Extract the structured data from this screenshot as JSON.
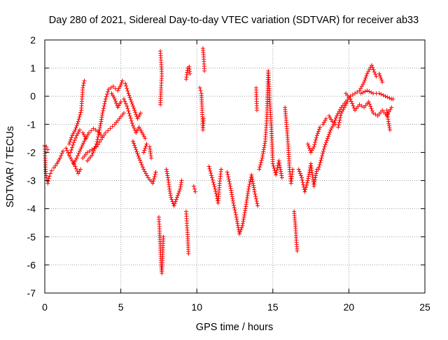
{
  "chart_data": {
    "type": "scatter",
    "title": "Day 280 of 2021, Sidereal Day-to-day VTEC variation (SDTVAR) for receiver ab33",
    "xlabel": "GPS time / hours",
    "ylabel": "SDTVAR / TECUs",
    "xlim": [
      0,
      25
    ],
    "ylim": [
      -7,
      2
    ],
    "x_ticks": [
      0,
      5,
      10,
      15,
      20,
      25
    ],
    "y_ticks": [
      -7,
      -6,
      -5,
      -4,
      -3,
      -2,
      -1,
      0,
      1,
      2
    ],
    "grid": true,
    "marker": "+",
    "color": "#ff0000",
    "series": [
      {
        "name": "SDTVAR",
        "segments": [
          [
            [
              0.0,
              -1.8
            ],
            [
              0.05,
              -2.6
            ],
            [
              0.1,
              -2.9
            ],
            [
              0.2,
              -3.1
            ],
            [
              0.3,
              -2.85
            ],
            [
              0.45,
              -2.65
            ],
            [
              0.6,
              -2.55
            ],
            [
              0.8,
              -2.4
            ],
            [
              1.0,
              -2.2
            ],
            [
              1.2,
              -1.95
            ],
            [
              1.4,
              -1.85
            ],
            [
              1.6,
              -2.1
            ],
            [
              1.8,
              -2.3
            ],
            [
              2.0,
              -2.5
            ],
            [
              2.2,
              -2.75
            ],
            [
              2.35,
              -2.6
            ]
          ],
          [
            [
              0.0,
              -1.75
            ],
            [
              0.1,
              -1.8
            ],
            [
              0.2,
              -1.9
            ]
          ],
          [
            [
              1.6,
              -1.7
            ],
            [
              1.8,
              -1.4
            ],
            [
              2.0,
              -1.2
            ],
            [
              2.2,
              -0.9
            ],
            [
              2.4,
              -0.5
            ],
            [
              2.5,
              0.3
            ],
            [
              2.6,
              0.55
            ]
          ],
          [
            [
              1.7,
              -2.0
            ],
            [
              1.9,
              -1.65
            ],
            [
              2.1,
              -1.4
            ],
            [
              2.3,
              -1.2
            ],
            [
              2.5,
              -1.3
            ],
            [
              2.7,
              -1.5
            ]
          ],
          [
            [
              1.9,
              -2.4
            ],
            [
              2.1,
              -2.2
            ],
            [
              2.3,
              -1.95
            ],
            [
              2.6,
              -1.6
            ],
            [
              2.9,
              -1.3
            ],
            [
              3.2,
              -1.15
            ],
            [
              3.5,
              -1.25
            ],
            [
              3.8,
              -1.45
            ]
          ],
          [
            [
              2.5,
              -2.2
            ],
            [
              2.8,
              -2.0
            ],
            [
              3.1,
              -1.9
            ],
            [
              3.4,
              -1.8
            ],
            [
              3.7,
              -1.55
            ],
            [
              4.0,
              -1.3
            ],
            [
              4.3,
              -1.15
            ],
            [
              4.6,
              -1.0
            ],
            [
              4.9,
              -0.8
            ],
            [
              5.2,
              -0.6
            ]
          ],
          [
            [
              2.8,
              -2.3
            ],
            [
              3.1,
              -2.1
            ],
            [
              3.4,
              -1.7
            ],
            [
              3.6,
              -1.2
            ],
            [
              3.8,
              -0.6
            ],
            [
              4.0,
              -0.1
            ],
            [
              4.2,
              0.25
            ],
            [
              4.5,
              0.35
            ],
            [
              4.8,
              0.2
            ],
            [
              5.0,
              0.4
            ],
            [
              5.1,
              0.55
            ],
            [
              5.3,
              0.45
            ],
            [
              5.5,
              0.1
            ],
            [
              5.7,
              -0.2
            ],
            [
              5.9,
              -0.5
            ],
            [
              6.1,
              -0.8
            ],
            [
              6.3,
              -0.6
            ]
          ],
          [
            [
              4.4,
              0.1
            ],
            [
              4.6,
              -0.1
            ],
            [
              4.8,
              -0.4
            ],
            [
              5.0,
              -0.2
            ],
            [
              5.2,
              -0.1
            ],
            [
              5.4,
              -0.35
            ],
            [
              5.6,
              -0.7
            ],
            [
              5.8,
              -1.05
            ],
            [
              6.0,
              -1.3
            ],
            [
              6.2,
              -1.1
            ],
            [
              6.4,
              -1.3
            ],
            [
              6.6,
              -1.5
            ]
          ],
          [
            [
              5.8,
              -1.6
            ],
            [
              6.0,
              -1.9
            ],
            [
              6.2,
              -2.2
            ],
            [
              6.5,
              -2.6
            ],
            [
              6.8,
              -2.9
            ],
            [
              7.1,
              -3.1
            ],
            [
              7.3,
              -2.7
            ]
          ],
          [
            [
              6.5,
              -2.0
            ],
            [
              6.7,
              -1.7
            ],
            [
              6.9,
              -1.8
            ],
            [
              7.0,
              -2.2
            ]
          ],
          [
            [
              7.5,
              -4.3
            ],
            [
              7.55,
              -4.8
            ],
            [
              7.6,
              -5.4
            ],
            [
              7.65,
              -6.0
            ],
            [
              7.7,
              -6.3
            ],
            [
              7.75,
              -5.7
            ],
            [
              7.8,
              -5.0
            ]
          ],
          [
            [
              7.6,
              1.6
            ],
            [
              7.65,
              1.2
            ],
            [
              7.7,
              0.8
            ],
            [
              7.65,
              0.3
            ],
            [
              7.6,
              -0.3
            ]
          ],
          [
            [
              8.0,
              -2.6
            ],
            [
              8.1,
              -2.9
            ],
            [
              8.2,
              -3.3
            ],
            [
              8.3,
              -3.6
            ],
            [
              8.5,
              -3.9
            ],
            [
              8.7,
              -3.6
            ],
            [
              8.9,
              -3.3
            ],
            [
              9.0,
              -3.0
            ]
          ],
          [
            [
              9.3,
              -4.1
            ],
            [
              9.35,
              -4.6
            ],
            [
              9.4,
              -5.0
            ],
            [
              9.45,
              -5.6
            ]
          ],
          [
            [
              9.3,
              0.6
            ],
            [
              9.4,
              1.0
            ],
            [
              9.5,
              1.05
            ],
            [
              9.55,
              0.8
            ]
          ],
          [
            [
              9.8,
              -3.2
            ],
            [
              9.9,
              -3.4
            ]
          ],
          [
            [
              10.2,
              0.3
            ],
            [
              10.3,
              0.1
            ],
            [
              10.35,
              -0.5
            ],
            [
              10.4,
              -1.2
            ],
            [
              10.45,
              -0.8
            ]
          ],
          [
            [
              10.4,
              1.7
            ],
            [
              10.45,
              1.4
            ],
            [
              10.5,
              0.9
            ]
          ],
          [
            [
              10.8,
              -2.5
            ],
            [
              11.0,
              -2.9
            ],
            [
              11.2,
              -3.3
            ],
            [
              11.4,
              -3.8
            ],
            [
              11.5,
              -3.1
            ],
            [
              11.6,
              -2.6
            ]
          ],
          [
            [
              12.0,
              -2.7
            ],
            [
              12.2,
              -3.2
            ],
            [
              12.4,
              -3.8
            ],
            [
              12.6,
              -4.3
            ],
            [
              12.8,
              -4.9
            ],
            [
              13.0,
              -4.6
            ],
            [
              13.2,
              -4.0
            ],
            [
              13.4,
              -3.3
            ],
            [
              13.6,
              -2.8
            ],
            [
              13.8,
              -3.4
            ],
            [
              14.0,
              -3.9
            ]
          ],
          [
            [
              13.9,
              0.3
            ],
            [
              13.95,
              -0.5
            ]
          ],
          [
            [
              14.1,
              -2.6
            ],
            [
              14.3,
              -2.2
            ],
            [
              14.5,
              -1.6
            ],
            [
              14.6,
              -0.8
            ],
            [
              14.7,
              0.9
            ],
            [
              14.8,
              -0.2
            ],
            [
              14.9,
              -1.1
            ],
            [
              15.0,
              -2.4
            ],
            [
              15.2,
              -2.8
            ],
            [
              15.4,
              -2.3
            ],
            [
              15.6,
              -2.9
            ]
          ],
          [
            [
              15.8,
              -0.4
            ],
            [
              15.9,
              -1.0
            ],
            [
              16.0,
              -1.7
            ],
            [
              16.1,
              -2.6
            ],
            [
              16.2,
              -3.1
            ],
            [
              16.3,
              -2.6
            ]
          ],
          [
            [
              16.4,
              -4.1
            ],
            [
              16.5,
              -4.7
            ],
            [
              16.55,
              -5.2
            ],
            [
              16.6,
              -5.5
            ]
          ],
          [
            [
              16.7,
              -2.6
            ],
            [
              16.9,
              -2.9
            ],
            [
              17.1,
              -3.4
            ],
            [
              17.3,
              -3.0
            ],
            [
              17.5,
              -2.4
            ],
            [
              17.7,
              -3.2
            ],
            [
              17.9,
              -2.6
            ]
          ],
          [
            [
              17.3,
              -1.7
            ],
            [
              17.5,
              -2.0
            ],
            [
              17.7,
              -1.8
            ],
            [
              17.9,
              -1.4
            ],
            [
              18.1,
              -1.1
            ],
            [
              18.3,
              -1.0
            ],
            [
              18.5,
              -0.8
            ],
            [
              18.7,
              -0.7
            ],
            [
              18.9,
              -0.9
            ],
            [
              19.1,
              -1.0
            ],
            [
              19.3,
              -1.1
            ],
            [
              19.5,
              -0.6
            ],
            [
              19.7,
              -0.4
            ],
            [
              19.9,
              -0.2
            ]
          ],
          [
            [
              18.0,
              -2.6
            ],
            [
              18.2,
              -2.2
            ],
            [
              18.4,
              -1.8
            ],
            [
              18.6,
              -1.5
            ],
            [
              18.8,
              -1.2
            ],
            [
              19.0,
              -1.0
            ],
            [
              19.2,
              -0.7
            ],
            [
              19.5,
              -0.4
            ],
            [
              19.8,
              -0.2
            ],
            [
              20.1,
              0.0
            ],
            [
              20.4,
              0.1
            ],
            [
              20.7,
              0.2
            ],
            [
              21.0,
              0.5
            ],
            [
              21.2,
              0.8
            ],
            [
              21.5,
              1.1
            ],
            [
              21.8,
              0.7
            ],
            [
              22.0,
              0.8
            ],
            [
              22.2,
              0.5
            ]
          ],
          [
            [
              19.8,
              0.1
            ],
            [
              20.1,
              -0.1
            ],
            [
              20.4,
              -0.5
            ],
            [
              20.7,
              -0.3
            ],
            [
              21.0,
              -0.4
            ],
            [
              21.3,
              -0.2
            ],
            [
              21.6,
              -0.6
            ],
            [
              21.9,
              -0.7
            ],
            [
              22.2,
              -0.5
            ],
            [
              22.5,
              -0.7
            ],
            [
              22.8,
              -0.4
            ]
          ],
          [
            [
              20.8,
              0.1
            ],
            [
              21.2,
              0.2
            ],
            [
              21.6,
              0.1
            ],
            [
              22.0,
              0.1
            ],
            [
              22.4,
              0.0
            ],
            [
              22.8,
              -0.1
            ],
            [
              22.9,
              -0.1
            ]
          ],
          [
            [
              22.5,
              -0.5
            ],
            [
              22.6,
              -0.9
            ],
            [
              22.7,
              -1.2
            ]
          ]
        ]
      }
    ]
  }
}
